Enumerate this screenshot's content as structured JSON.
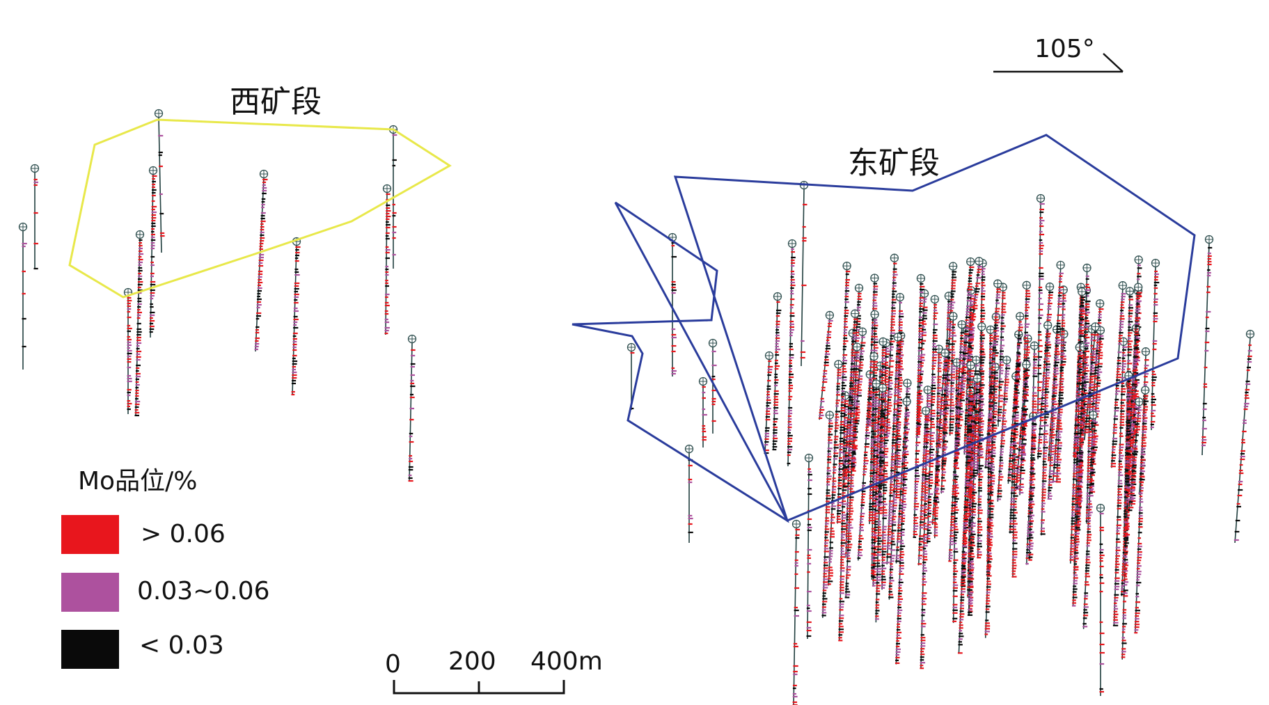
{
  "zones": {
    "west": {
      "label": "西矿段",
      "outline_color": "#e8e84a"
    },
    "east": {
      "label": "东矿段",
      "outline_color": "#2a3c9c"
    }
  },
  "orientation": {
    "label": "105°"
  },
  "legend": {
    "title": "Mo品位/%",
    "items": [
      {
        "label": "> 0.06",
        "color": "#e8161d"
      },
      {
        "label": "0.03~0.06",
        "color": "#ad519e"
      },
      {
        "label": "< 0.03",
        "color": "#0a0a0a"
      }
    ]
  },
  "scale_bar": {
    "labels": [
      "0",
      "200",
      "400m"
    ]
  },
  "drillhole_colors": {
    "collar": "#2f4f4f",
    "trace": "#1f3d3d"
  }
}
